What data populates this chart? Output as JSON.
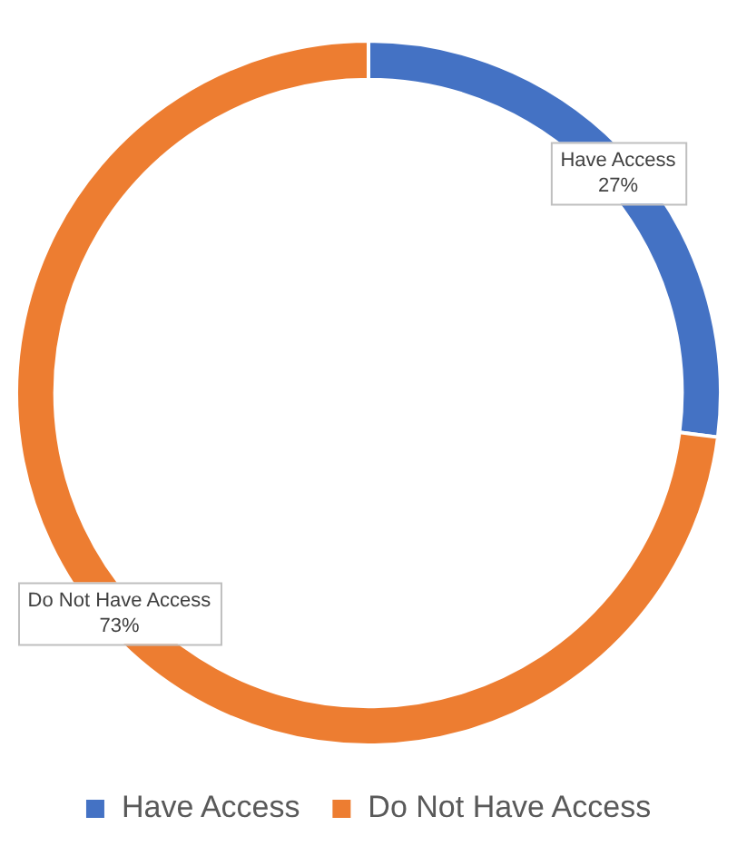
{
  "chart_data": {
    "type": "donut",
    "categories": [
      "Have Access",
      "Do Not Have Access"
    ],
    "values": [
      27,
      73
    ],
    "colors": [
      "#4472c4",
      "#ed7d31"
    ],
    "value_labels": [
      "27%",
      "73%"
    ],
    "legend": "bottom"
  }
}
